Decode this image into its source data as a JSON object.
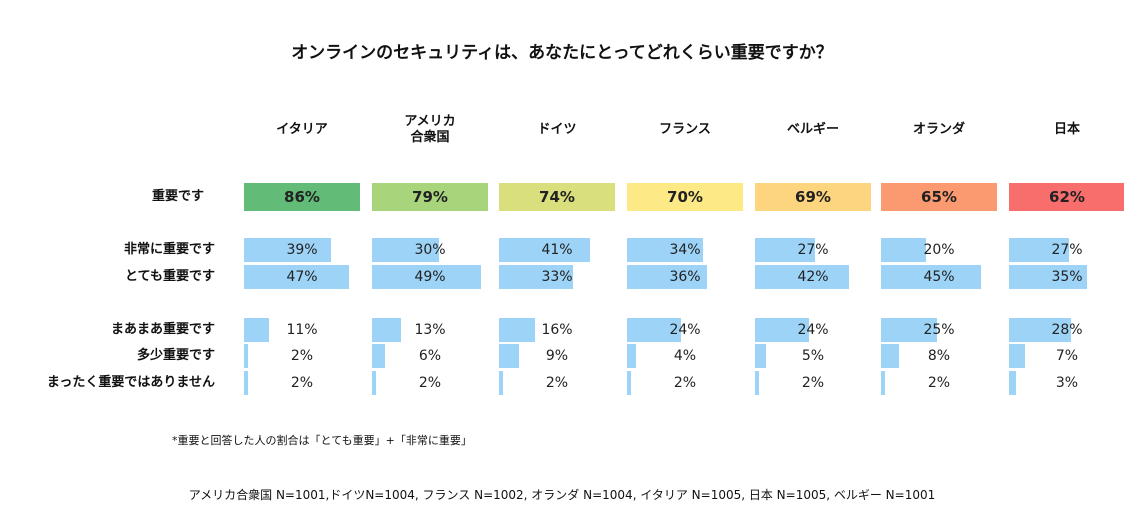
{
  "chart_data": {
    "type": "bar",
    "title": "オンラインのセキュリティは、あなたにとってどれくらい重要ですか？",
    "categories": [
      "イタリア",
      "アメリカ\n合衆国",
      "ドイツ",
      "フランス",
      "ベルギー",
      "オランダ",
      "日本"
    ],
    "headline": {
      "label": "重要です",
      "values": [
        86,
        79,
        74,
        70,
        69,
        65,
        62
      ],
      "colors": [
        "#62bb77",
        "#a8d47c",
        "#dadf7e",
        "#fde985",
        "#fdd57f",
        "#fb9a70",
        "#f86e6c"
      ]
    },
    "series": [
      {
        "name": "非常に重要です",
        "values": [
          39,
          30,
          41,
          34,
          27,
          20,
          27
        ]
      },
      {
        "name": "とても重要です",
        "values": [
          47,
          49,
          33,
          36,
          42,
          45,
          35
        ]
      },
      {
        "name": "まあまあ重要です",
        "values": [
          11,
          13,
          16,
          24,
          24,
          25,
          28
        ]
      },
      {
        "name": "多少重要です",
        "values": [
          2,
          6,
          9,
          4,
          5,
          8,
          7
        ]
      },
      {
        "name": "まったく重要ではありません",
        "values": [
          2,
          2,
          2,
          2,
          2,
          2,
          3
        ]
      }
    ],
    "value_suffix": "%",
    "bar_color": "#9cd3f7",
    "note": "*重要と回答した人の割合は「とても重要」+「非常に重要」",
    "footer": "アメリカ合衆国 N=1001,ドイツN=1004, フランス N=1002, オランダ N=1004, イタリア N=1005, 日本 N=1005, ベルギー N=1001"
  }
}
